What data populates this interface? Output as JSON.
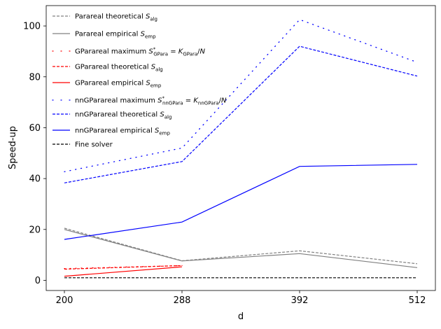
{
  "chart_data": {
    "type": "line",
    "xlabel": "d",
    "ylabel": "Speed-up",
    "x_ticks": [
      "200",
      "288",
      "392",
      "512"
    ],
    "y_ticks": [
      "0",
      "20",
      "40",
      "60",
      "80",
      "100"
    ],
    "ylim": [
      -4,
      108
    ],
    "grid": false,
    "legend_position": "top-left",
    "series": [
      {
        "name": "Parareal theoretical S_alg",
        "color": "#808080",
        "style": "dashed",
        "x": [
          "200",
          "288",
          "392",
          "512"
        ],
        "values": [
          20.5,
          7.7,
          11.6,
          6.5
        ]
      },
      {
        "name": "Parareal empirical S_emp",
        "color": "#808080",
        "style": "solid",
        "x": [
          "200",
          "288",
          "392",
          "512"
        ],
        "values": [
          20.0,
          7.6,
          10.5,
          5.0
        ]
      },
      {
        "name": "GParareal maximum S*_GPara = K_GPara/N",
        "color": "#ff0000",
        "style": "dotted",
        "x": [
          "200",
          "288"
        ],
        "values": [
          4.6,
          5.8
        ]
      },
      {
        "name": "GParareal theoretical S_alg",
        "color": "#ff0000",
        "style": "dashed",
        "x": [
          "200",
          "288"
        ],
        "values": [
          4.4,
          5.8
        ]
      },
      {
        "name": "GParareal empirical S_emp",
        "color": "#ff0000",
        "style": "solid",
        "x": [
          "200",
          "288"
        ],
        "values": [
          1.6,
          5.3
        ]
      },
      {
        "name": "nnGParareal maximum S*_nnGPara = K_nnGPara/N",
        "color": "#0000ff",
        "style": "dotted",
        "x": [
          "200",
          "288",
          "392",
          "512"
        ],
        "values": [
          42.7,
          52.0,
          102.5,
          85.7
        ]
      },
      {
        "name": "nnGParareal theoretical S_alg",
        "color": "#0000ff",
        "style": "dashed",
        "x": [
          "200",
          "288",
          "392",
          "512"
        ],
        "values": [
          38.3,
          46.7,
          92.0,
          80.3
        ]
      },
      {
        "name": "nnGParareal empirical S_emp",
        "color": "#0000ff",
        "style": "solid",
        "x": [
          "200",
          "288",
          "392",
          "512"
        ],
        "values": [
          16.1,
          22.9,
          44.8,
          45.6
        ]
      },
      {
        "name": "Fine solver",
        "color": "#000000",
        "style": "dashed",
        "x": [
          "200",
          "288",
          "392",
          "512"
        ],
        "values": [
          1,
          1,
          1,
          1
        ]
      }
    ],
    "legend": [
      {
        "color": "#808080",
        "style": "dashed",
        "parts": [
          [
            "t",
            "Parareal theoretical "
          ],
          [
            "i",
            "S"
          ],
          [
            "sub",
            "alg"
          ]
        ]
      },
      {
        "color": "#808080",
        "style": "solid",
        "parts": [
          [
            "t",
            "Parareal empirical "
          ],
          [
            "i",
            "S"
          ],
          [
            "sub",
            "emp"
          ]
        ]
      },
      {
        "color": "#ff0000",
        "style": "dotted",
        "parts": [
          [
            "t",
            "GParareal maximum "
          ],
          [
            "i",
            "S"
          ],
          [
            "supsub",
            "*",
            "GPara"
          ],
          [
            "t",
            " = "
          ],
          [
            "i",
            "K"
          ],
          [
            "sub",
            "GPara"
          ],
          [
            "t",
            "/"
          ],
          [
            "i",
            "N"
          ]
        ]
      },
      {
        "color": "#ff0000",
        "style": "dashed",
        "parts": [
          [
            "t",
            "GParareal theoretical "
          ],
          [
            "i",
            "S"
          ],
          [
            "sub",
            "alg"
          ]
        ]
      },
      {
        "color": "#ff0000",
        "style": "solid",
        "parts": [
          [
            "t",
            "GParareal empirical "
          ],
          [
            "i",
            "S"
          ],
          [
            "sub",
            "emp"
          ]
        ]
      },
      {
        "color": "#0000ff",
        "style": "dotted",
        "parts": [
          [
            "t",
            "nnGParareal maximum "
          ],
          [
            "i",
            "S"
          ],
          [
            "supsub",
            "*",
            "nnGPara"
          ],
          [
            "t",
            " = "
          ],
          [
            "i",
            "K"
          ],
          [
            "sub",
            "nnGPara"
          ],
          [
            "t",
            "/"
          ],
          [
            "i",
            "N"
          ]
        ]
      },
      {
        "color": "#0000ff",
        "style": "dashed",
        "parts": [
          [
            "t",
            "nnGParareal theoretical "
          ],
          [
            "i",
            "S"
          ],
          [
            "sub",
            "alg"
          ]
        ]
      },
      {
        "color": "#0000ff",
        "style": "solid",
        "parts": [
          [
            "t",
            "nnGParareal empirical "
          ],
          [
            "i",
            "S"
          ],
          [
            "sub",
            "emp"
          ]
        ]
      },
      {
        "color": "#000000",
        "style": "dashed",
        "parts": [
          [
            "t",
            "Fine solver"
          ]
        ]
      }
    ]
  }
}
